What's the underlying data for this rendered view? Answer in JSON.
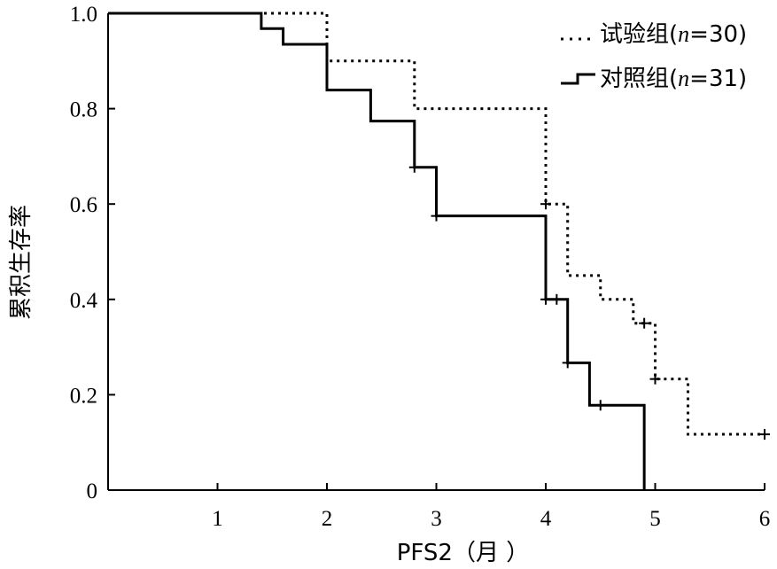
{
  "chart_data": {
    "type": "line",
    "subtype": "kaplan-meier",
    "xlabel": "PFS2（月 ）",
    "ylabel": "累积生存率",
    "xlim": [
      0,
      6
    ],
    "ylim": [
      0,
      1.0
    ],
    "xticks": [
      1,
      2,
      3,
      4,
      5,
      6
    ],
    "yticks": [
      0,
      0.2,
      0.4,
      0.6,
      0.8,
      1.0
    ],
    "ytick_labels": [
      "0",
      "0.2",
      "0.4",
      "0.6",
      "0.8",
      "1.0"
    ],
    "grid": false,
    "legend_position": "top-right",
    "series": [
      {
        "name": "试验组(n=30)",
        "legend_prefix": "试验组(",
        "legend_n": "n",
        "legend_suffix": "=30)",
        "style": "dotted",
        "steps": [
          [
            0,
            1.0
          ],
          [
            2.0,
            0.9
          ],
          [
            2.8,
            0.8
          ],
          [
            4.0,
            0.6
          ],
          [
            4.2,
            0.45
          ],
          [
            4.5,
            0.4
          ],
          [
            4.8,
            0.35
          ],
          [
            5.0,
            0.233
          ],
          [
            5.3,
            0.117
          ]
        ],
        "end_x": 6.0,
        "censored": [
          [
            4.0,
            0.6
          ],
          [
            4.9,
            0.35
          ],
          [
            5.0,
            0.233
          ],
          [
            6.0,
            0.117
          ]
        ]
      },
      {
        "name": "对照组(n=31)",
        "legend_prefix": "对照组(",
        "legend_n": "n",
        "legend_suffix": "=31)",
        "style": "solid",
        "steps": [
          [
            0,
            1.0
          ],
          [
            1.4,
            0.968
          ],
          [
            1.6,
            0.935
          ],
          [
            2.0,
            0.839
          ],
          [
            2.4,
            0.774
          ],
          [
            2.8,
            0.677
          ],
          [
            3.0,
            0.575
          ],
          [
            4.0,
            0.4
          ],
          [
            4.2,
            0.267
          ],
          [
            4.4,
            0.178
          ],
          [
            4.9,
            0.0
          ]
        ],
        "end_x": 4.9,
        "censored": [
          [
            2.8,
            0.677
          ],
          [
            3.0,
            0.575
          ],
          [
            4.0,
            0.4
          ],
          [
            4.1,
            0.4
          ],
          [
            4.2,
            0.267
          ],
          [
            4.5,
            0.178
          ]
        ]
      }
    ]
  }
}
